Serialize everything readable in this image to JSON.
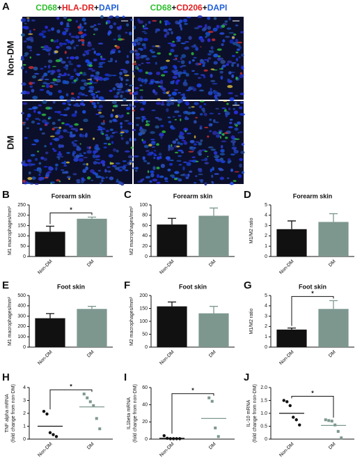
{
  "panel_a": {
    "label": "A",
    "columns": [
      [
        {
          "text": "CD68",
          "color": "#2fbf2f"
        },
        {
          "text": "+",
          "color": "#111111"
        },
        {
          "text": "HLA-DR",
          "color": "#e02020"
        },
        {
          "text": "+",
          "color": "#111111"
        },
        {
          "text": "DAPI",
          "color": "#1f5fd6"
        }
      ],
      [
        {
          "text": "CD68",
          "color": "#2fbf2f"
        },
        {
          "text": "+",
          "color": "#111111"
        },
        {
          "text": "CD206",
          "color": "#e02020"
        },
        {
          "text": "+",
          "color": "#111111"
        },
        {
          "text": "DAPI",
          "color": "#1f5fd6"
        }
      ]
    ],
    "rows": [
      "Non-DM",
      "DM"
    ]
  },
  "chart_data": [
    {
      "type": "bar",
      "panel": "B",
      "title": "Forearm skin",
      "ylabel": "M1 macrophages/mm²",
      "categories": [
        "Non-DM",
        "DM"
      ],
      "values": [
        120,
        183
      ],
      "errors": [
        27,
        8
      ],
      "colors": [
        "#111111",
        "#7d978f"
      ],
      "ylim": [
        0,
        250
      ],
      "yticks": [
        0,
        50,
        100,
        150,
        200,
        250
      ],
      "significance": "*"
    },
    {
      "type": "bar",
      "panel": "C",
      "title": "Forearm skin",
      "ylabel": "M2 macrophages/mm²",
      "categories": [
        "Non-DM",
        "DM"
      ],
      "values": [
        62,
        79
      ],
      "errors": [
        12,
        15
      ],
      "colors": [
        "#111111",
        "#7d978f"
      ],
      "ylim": [
        0,
        100
      ],
      "yticks": [
        0,
        20,
        40,
        60,
        80,
        100
      ]
    },
    {
      "type": "bar",
      "panel": "D",
      "title": "Forearm skin",
      "ylabel": "M1/M2 ratio",
      "categories": [
        "Non-DM",
        "DM"
      ],
      "values": [
        2.65,
        3.35
      ],
      "errors": [
        0.8,
        0.8
      ],
      "colors": [
        "#111111",
        "#7d978f"
      ],
      "ylim": [
        0,
        5
      ],
      "yticks": [
        0,
        1,
        2,
        3,
        4,
        5
      ]
    },
    {
      "type": "bar",
      "panel": "E",
      "title": "Foot skin",
      "ylabel": "M1 macrophages/mm²",
      "categories": [
        "Non-DM",
        "DM"
      ],
      "values": [
        280,
        370
      ],
      "errors": [
        45,
        25
      ],
      "colors": [
        "#111111",
        "#7d978f"
      ],
      "ylim": [
        0,
        500
      ],
      "yticks": [
        0,
        100,
        200,
        300,
        400,
        500
      ]
    },
    {
      "type": "bar",
      "panel": "F",
      "title": "Foot skin",
      "ylabel": "M2 macrophages/mm²",
      "categories": [
        "Non-DM",
        "DM"
      ],
      "values": [
        158,
        131
      ],
      "errors": [
        17,
        27
      ],
      "colors": [
        "#111111",
        "#7d978f"
      ],
      "ylim": [
        0,
        200
      ],
      "yticks": [
        0,
        50,
        100,
        150,
        200
      ]
    },
    {
      "type": "bar",
      "panel": "G",
      "title": "Foot skin",
      "ylabel": "M1/M2 ratio",
      "categories": [
        "Non-DM",
        "DM"
      ],
      "values": [
        1.7,
        3.7
      ],
      "errors": [
        0.15,
        0.8
      ],
      "colors": [
        "#111111",
        "#7d978f"
      ],
      "ylim": [
        0,
        5
      ],
      "yticks": [
        0,
        1,
        2,
        3,
        4,
        5
      ],
      "significance": "*"
    },
    {
      "type": "strip",
      "panel": "H",
      "ylabel": "TNF alpha mRNA\n(fold change from non-DM)",
      "categories": [
        "Non-DM",
        "DM"
      ],
      "values": [
        [
          2.15,
          1.95,
          0.5,
          0.35,
          0.2
        ],
        [
          3.5,
          3.2,
          2.9,
          2.6,
          1.6,
          0.8
        ]
      ],
      "means": [
        1,
        2.5
      ],
      "colors": [
        "#111111",
        "#7d978f"
      ],
      "ylim": [
        0,
        4
      ],
      "yticks": [
        0,
        1,
        2,
        3,
        4
      ],
      "significance": "*"
    },
    {
      "type": "strip",
      "panel": "I",
      "ylabel": "IL1beta mRNA\n(fold change from non-DM)",
      "categories": [
        "Non-DM",
        "DM"
      ],
      "values": [
        [
          4,
          1,
          0.5,
          0.5,
          0.5,
          0.5
        ],
        [
          48,
          44,
          13,
          3
        ]
      ],
      "means": [
        1,
        24
      ],
      "colors": [
        "#111111",
        "#7d978f"
      ],
      "ylim": [
        0,
        60
      ],
      "yticks": [
        0,
        20,
        40,
        60
      ],
      "significance": "*"
    },
    {
      "type": "strip",
      "panel": "J",
      "ylabel": "IL-10 mRNA\n(fold change from non-DM)",
      "categories": [
        "Non-DM",
        "DM"
      ],
      "values": [
        [
          1.5,
          1.45,
          1.3,
          0.85,
          0.75,
          0.55
        ],
        [
          0.75,
          0.72,
          0.7,
          0.55,
          0.3,
          0.05
        ]
      ],
      "means": [
        1,
        0.53
      ],
      "colors": [
        "#111111",
        "#7d978f"
      ],
      "ylim": [
        0,
        2
      ],
      "yticks": [
        0,
        0.5,
        {
          "value": 1,
          "label": "1.0"
        },
        1.5,
        {
          "value": 2,
          "label": "2.0"
        }
      ],
      "significance": "*"
    }
  ]
}
